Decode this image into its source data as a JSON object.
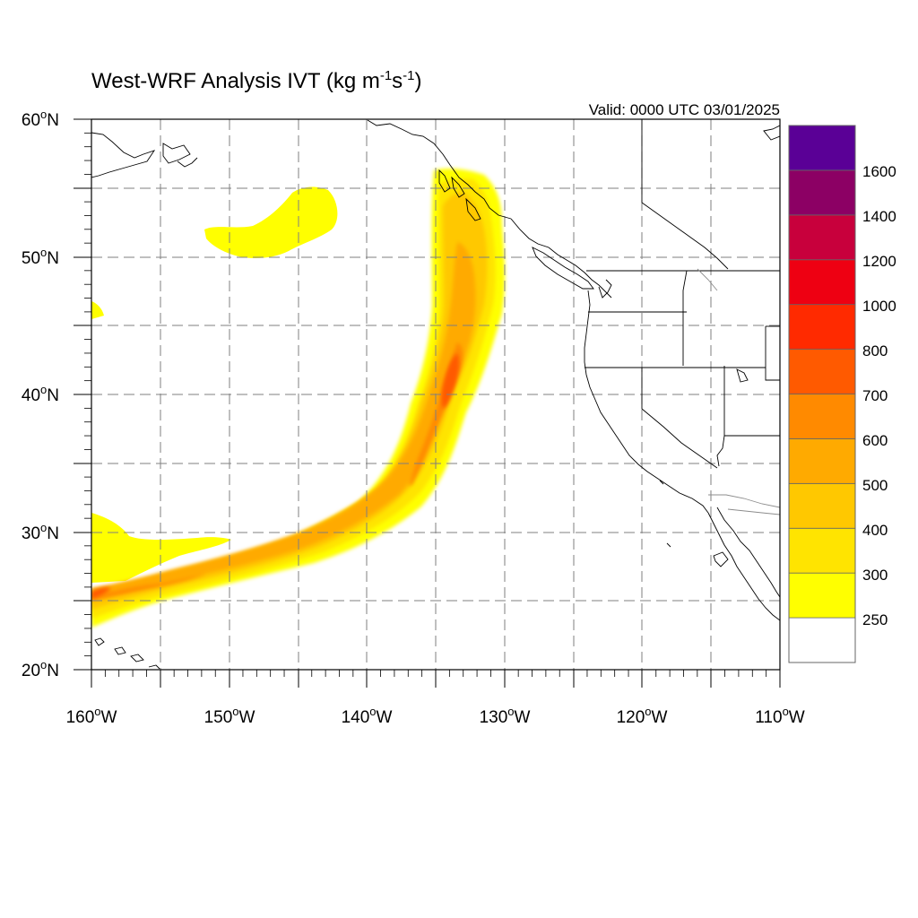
{
  "title": {
    "main": "West-WRF Analysis IVT (kg m",
    "sup1": "-1",
    "mid": "s",
    "sup2": "-1",
    "end": ")"
  },
  "valid_time": "Valid: 0000 UTC 03/01/2025",
  "map": {
    "lon_range": [
      -160,
      -110
    ],
    "lat_range": [
      20,
      60
    ],
    "x_ticks": [
      {
        "value": -160,
        "num": "160",
        "hem": "W"
      },
      {
        "value": -150,
        "num": "150",
        "hem": "W"
      },
      {
        "value": -140,
        "num": "140",
        "hem": "W"
      },
      {
        "value": -130,
        "num": "130",
        "hem": "W"
      },
      {
        "value": -120,
        "num": "120",
        "hem": "W"
      },
      {
        "value": -110,
        "num": "110",
        "hem": "W"
      }
    ],
    "y_ticks": [
      {
        "value": 60,
        "num": "60",
        "hem": "N"
      },
      {
        "value": 50,
        "num": "50",
        "hem": "N"
      },
      {
        "value": 40,
        "num": "40",
        "hem": "N"
      },
      {
        "value": 30,
        "num": "30",
        "hem": "N"
      },
      {
        "value": 20,
        "num": "20",
        "hem": "N"
      }
    ],
    "degree_symbol": "o"
  },
  "colorbar": {
    "levels": [
      "250",
      "300",
      "400",
      "500",
      "600",
      "700",
      "800",
      "1000",
      "1200",
      "1400",
      "1600"
    ],
    "colors": [
      "#ffffff",
      "#ffff00",
      "#ffe400",
      "#ffc800",
      "#ffaa00",
      "#ff8a00",
      "#ff5a00",
      "#ff2a00",
      "#ee0012",
      "#c8003c",
      "#8c0064",
      "#5a0096"
    ]
  },
  "chart_data": {
    "type": "heatmap",
    "variable": "IVT",
    "units": "kg m-1 s-1",
    "xlim": [
      -160,
      -110
    ],
    "ylim": [
      20,
      60
    ],
    "grid": true,
    "features": [
      {
        "max_level": 700,
        "path_lonlat": [
          [
            -160,
            26
          ],
          [
            -150,
            27
          ],
          [
            -140,
            29.5
          ],
          [
            -136,
            33
          ],
          [
            -134,
            38
          ],
          [
            -133.5,
            43
          ],
          [
            -133,
            50
          ],
          [
            -133,
            55
          ]
        ]
      },
      {
        "max_level": 300,
        "center_lonlat": [
          -147,
          52
        ]
      }
    ]
  }
}
